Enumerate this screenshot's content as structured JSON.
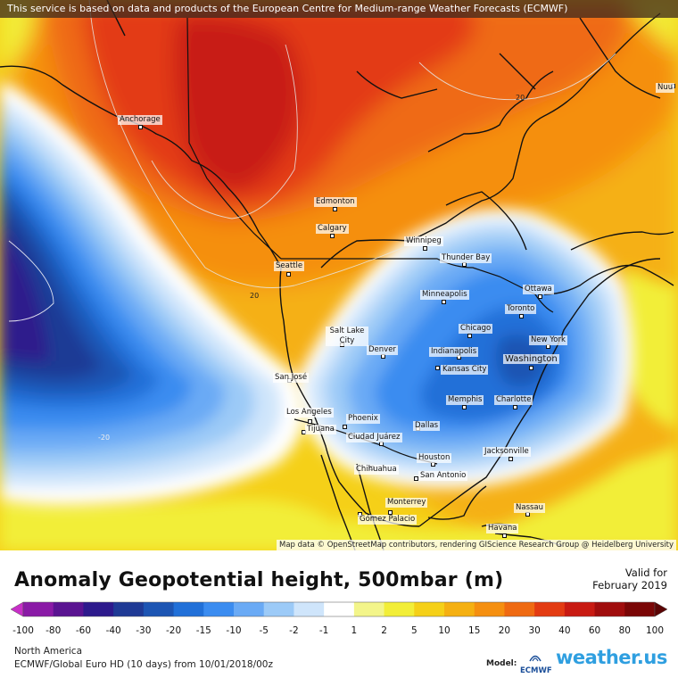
{
  "banner": {
    "text": "This service is based on data and products of the European Centre for Medium-range Weather Forecasts (ECMWF)"
  },
  "attribution": {
    "text": "Map data © OpenStreetMap contributors, rendering GIScience Research Group @ Heidelberg University"
  },
  "cities": [
    {
      "label": "Anchorage"
    },
    {
      "label": "Edmonton"
    },
    {
      "label": "Calgary"
    },
    {
      "label": "Winnipeg"
    },
    {
      "label": "Seattle"
    },
    {
      "label": "Thunder Bay"
    },
    {
      "label": "Ottawa"
    },
    {
      "label": "Minneapolis"
    },
    {
      "label": "Toronto"
    },
    {
      "label": "Salt Lake City"
    },
    {
      "label": "Chicago"
    },
    {
      "label": "Denver"
    },
    {
      "label": "New York"
    },
    {
      "label": "Indianapolis"
    },
    {
      "label": "Washington"
    },
    {
      "label": "Kansas City"
    },
    {
      "label": "San José"
    },
    {
      "label": "Memphis"
    },
    {
      "label": "Charlotte"
    },
    {
      "label": "Los Angeles"
    },
    {
      "label": "Phoenix"
    },
    {
      "label": "Dallas"
    },
    {
      "label": "Tijuana"
    },
    {
      "label": "Ciudad Juárez"
    },
    {
      "label": "Jacksonville"
    },
    {
      "label": "Houston"
    },
    {
      "label": "Chihuahua"
    },
    {
      "label": "San Antonio"
    },
    {
      "label": "Monterrey"
    },
    {
      "label": "Nassau"
    },
    {
      "label": "Gómez Palacio"
    },
    {
      "label": "Havana"
    },
    {
      "label": "Nuu"
    }
  ],
  "contour_labels": [
    "20",
    "20",
    "-20"
  ],
  "legend": {
    "title": "Anomaly Geopotential height, 500mbar (m)",
    "valid_line1": "Valid for",
    "valid_line2": "February 2019",
    "ticks": [
      "-100",
      "-80",
      "-60",
      "-40",
      "-30",
      "-20",
      "-15",
      "-10",
      "-5",
      "-2",
      "-1",
      "1",
      "2",
      "5",
      "10",
      "15",
      "20",
      "30",
      "40",
      "60",
      "80",
      "100"
    ],
    "colors": [
      "#c72fc7",
      "#8a1aa6",
      "#5a1491",
      "#2d1a8c",
      "#1f3a95",
      "#1d55b3",
      "#2170d8",
      "#3b8cf0",
      "#6aaaf5",
      "#9ccaf7",
      "#cfe5fb",
      "#ffffff",
      "#f3f58a",
      "#f2ee38",
      "#f5d018",
      "#f5b012",
      "#f58f10",
      "#ef6a12",
      "#e33b12",
      "#c81a12",
      "#a00d0d",
      "#7a0606",
      "#5a0404"
    ]
  },
  "footer": {
    "region": "North America",
    "model": "ECMWF/Global Euro HD (10 days) from 10/01/2018/00z",
    "model_label": "Model:",
    "ecmwf_logo_text": "ECMWF",
    "brand_text": "weather.us"
  }
}
